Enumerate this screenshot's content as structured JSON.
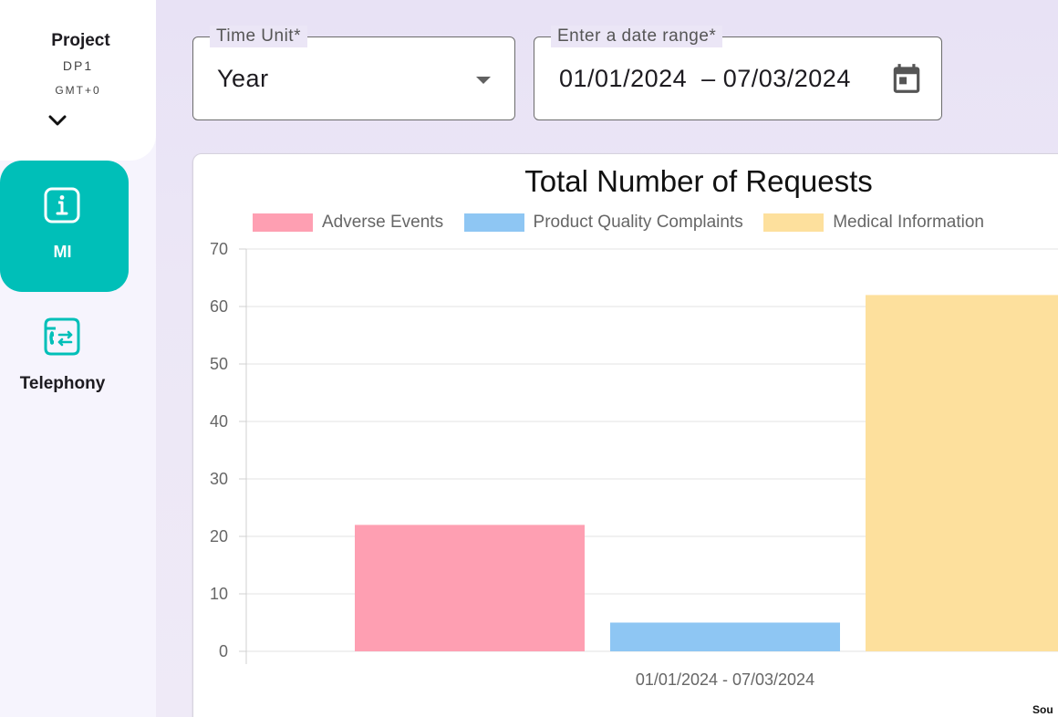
{
  "sidebar": {
    "project": {
      "title": "Project",
      "code": "DP1",
      "timezone": "GMT+0",
      "chevron_icon": "chevron-down-icon"
    },
    "items": [
      {
        "label": "MI",
        "icon": "info-icon",
        "active": true,
        "color": "#00bfb8"
      },
      {
        "label": "Telephony",
        "icon": "telephony-icon",
        "active": false,
        "color": "#00bfb8"
      }
    ]
  },
  "filters": {
    "time_unit": {
      "label": "Time Unit*",
      "value": "Year"
    },
    "date_range": {
      "label": "Enter a date range*",
      "start": "01/01/2024",
      "separator": "–",
      "end": "07/03/2024",
      "icon": "calendar-icon"
    }
  },
  "chart_data": {
    "type": "bar",
    "title": "Total Number of Requests",
    "categories": [
      "01/01/2024 - 07/03/2024"
    ],
    "series": [
      {
        "name": "Adverse Events",
        "values": [
          22
        ],
        "color": "#fe9fb2"
      },
      {
        "name": "Product Quality Complaints",
        "values": [
          5
        ],
        "color": "#8ec6f3"
      },
      {
        "name": "Medical Information",
        "values": [
          62
        ],
        "color": "#fde09d"
      }
    ],
    "ylim": [
      0,
      70
    ],
    "yticks": [
      0,
      10,
      20,
      30,
      40,
      50,
      60,
      70
    ],
    "grid": true,
    "legend": "top",
    "source_note": "Sou"
  }
}
